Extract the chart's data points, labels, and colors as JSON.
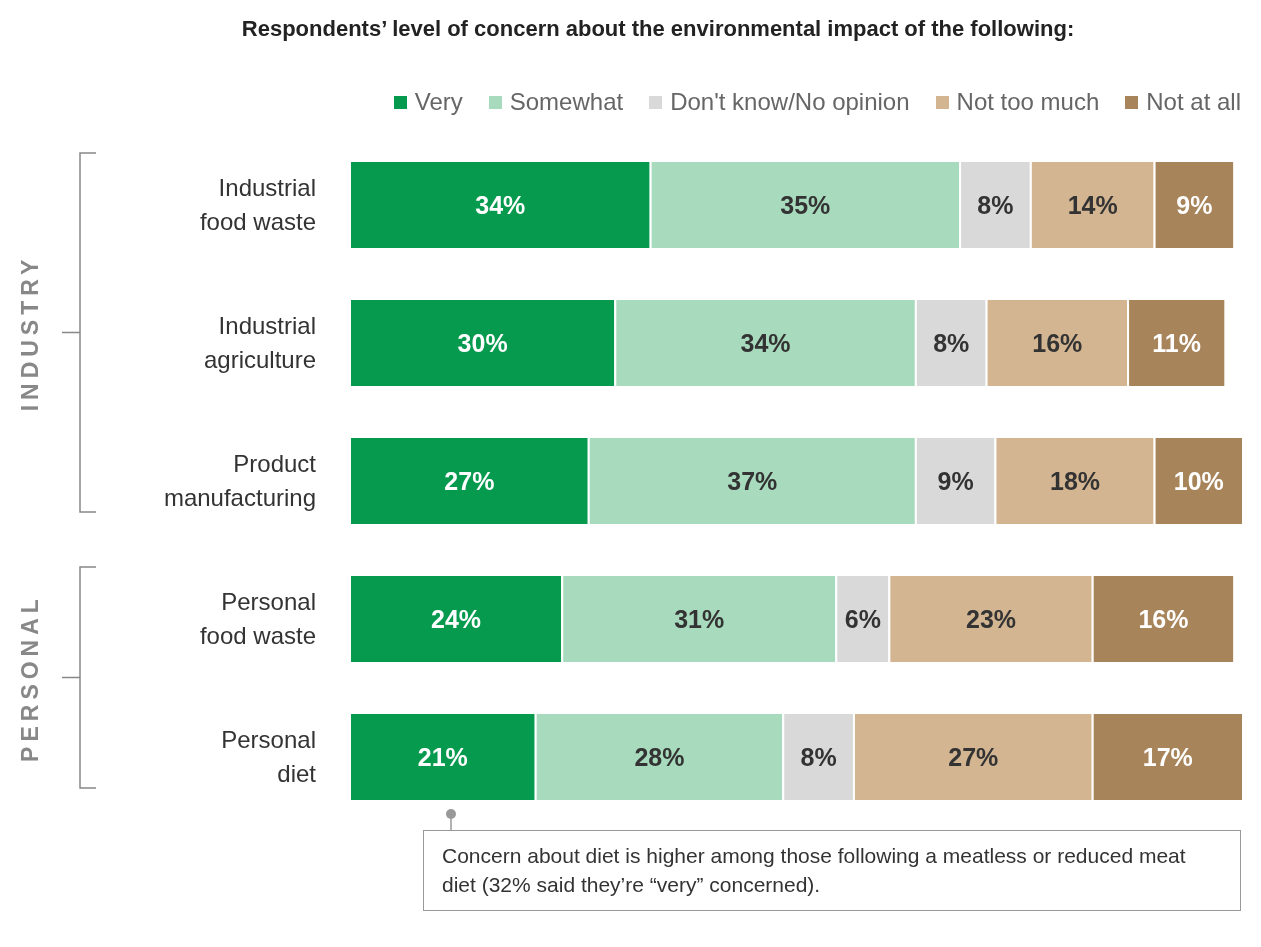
{
  "chart_data": {
    "type": "bar",
    "orientation": "horizontal",
    "stacked": true,
    "title": "Respondents’ level of concern about the environmental impact of the following:",
    "categories": [
      "Industrial food waste",
      "Industrial agriculture",
      "Product manufacturing",
      "Personal food waste",
      "Personal diet"
    ],
    "series": [
      {
        "name": "Very",
        "color": "#069a4e",
        "values": [
          34,
          30,
          27,
          24,
          21
        ],
        "value_labels": [
          "34%",
          "30%",
          "27%",
          "24%",
          "21%"
        ]
      },
      {
        "name": "Somewhat",
        "color": "#a8dbbd",
        "values": [
          35,
          34,
          37,
          31,
          28
        ],
        "value_labels": [
          "35%",
          "34%",
          "37%",
          "31%",
          "28%"
        ]
      },
      {
        "name": "Don't know/No opinion",
        "color": "#d9d9d9",
        "values": [
          8,
          8,
          9,
          6,
          8
        ],
        "value_labels": [
          "8%",
          "8%",
          "9%",
          "6%",
          "8%"
        ]
      },
      {
        "name": "Not too much",
        "color": "#d3b592",
        "values": [
          14,
          16,
          18,
          23,
          27
        ],
        "value_labels": [
          "14%",
          "16%",
          "18%",
          "23%",
          "27%"
        ]
      },
      {
        "name": "Not at all",
        "color": "#a8845a",
        "values": [
          9,
          11,
          10,
          16,
          17
        ],
        "value_labels": [
          "9%",
          "11%",
          "10%",
          "16%",
          "17%"
        ]
      }
    ],
    "legend": "top right",
    "annotations": [
      "INDUSTRY",
      "PERSONAL",
      "Concern about diet is higher among those following a meatless or reduced meat diet (32% said they’re “very” concerned)."
    ]
  }
}
